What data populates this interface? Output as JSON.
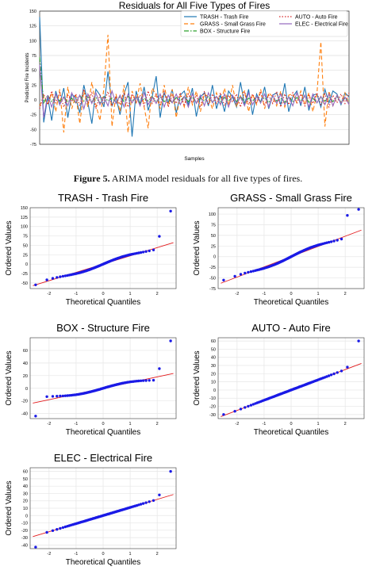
{
  "figure_caption": {
    "label": "Figure 5.",
    "text": "ARIMA model residuals for all five types of fires."
  },
  "chart_data": [
    {
      "type": "line",
      "title": "Residuals for All Five Types of Fires",
      "xlabel": "Samples",
      "ylabel": "Predicted Fire Incidents",
      "ylim": [
        -75,
        150
      ],
      "yticks": [
        -75,
        -50,
        -25,
        0,
        25,
        50,
        75,
        100,
        125,
        150
      ],
      "xticks": [],
      "grid": true,
      "legend_position": "top-right",
      "series": [
        {
          "name": "TRASH - Trash Fire",
          "color": "#1f77b4",
          "style": "solid",
          "values": [
            140,
            -38,
            5,
            -35,
            15,
            -8,
            20,
            -30,
            10,
            3,
            -22,
            25,
            -5,
            -40,
            18,
            8,
            -12,
            48,
            -10,
            5,
            -25,
            10,
            30,
            -62,
            15,
            -8,
            22,
            -18,
            5,
            40,
            -30,
            12,
            -5,
            18,
            -22,
            8,
            15,
            -8,
            20,
            -28,
            5,
            12,
            -10,
            25,
            -15,
            8,
            -20,
            15,
            5,
            -12,
            30,
            -8,
            18,
            -25,
            10,
            -5,
            22,
            -15,
            8,
            12,
            -8,
            28,
            -20,
            5,
            15,
            -10,
            22,
            -18,
            8,
            10,
            -12,
            18,
            -5,
            15,
            10,
            -8,
            12,
            5
          ]
        },
        {
          "name": "GRASS - Small Grass Fire",
          "color": "#ff7f0e",
          "style": "dashed",
          "values": [
            -10,
            5,
            -8,
            12,
            -20,
            18,
            -55,
            22,
            -15,
            8,
            -40,
            15,
            -12,
            30,
            -8,
            -35,
            20,
            110,
            -45,
            10,
            -20,
            25,
            -55,
            15,
            -5,
            28,
            -12,
            -48,
            20,
            8,
            -15,
            25,
            -10,
            18,
            -30,
            8,
            -12,
            22,
            -8,
            15,
            -20,
            10,
            5,
            -15,
            12,
            -8,
            20,
            -10,
            25,
            -12,
            8,
            15,
            -20,
            10,
            -8,
            18,
            -15,
            12,
            5,
            -10,
            15,
            -12,
            8,
            10,
            -5,
            15,
            -8,
            12,
            -20,
            10,
            98,
            -45,
            15,
            -10,
            8,
            -5,
            12,
            -8
          ]
        },
        {
          "name": "BOX - Structure Fire",
          "color": "#2ca02c",
          "style": "dashdot",
          "values": [
            72,
            -5,
            8,
            -3,
            6,
            -2,
            5,
            -4,
            3,
            -6,
            8,
            -2,
            5,
            -3,
            4,
            -5,
            6,
            -2,
            3,
            -4,
            5,
            -3,
            6,
            -2,
            4,
            -5,
            3,
            -2,
            6,
            -4,
            5,
            -3,
            2,
            -5,
            4,
            -2,
            6,
            -3,
            5,
            -4,
            3,
            -2,
            6,
            -4,
            5,
            -3,
            4,
            -2,
            5,
            -3,
            6,
            -4,
            3,
            -2,
            5,
            -3,
            4,
            -5,
            6,
            -2,
            3,
            -4,
            5,
            -3,
            4,
            -2,
            6,
            -4,
            3,
            -5,
            5,
            -2,
            4,
            -3,
            6,
            -4,
            3,
            -2
          ]
        },
        {
          "name": "AUTO - Auto Fire",
          "color": "#d62728",
          "style": "dotted",
          "values": [
            -15,
            10,
            -8,
            15,
            -5,
            12,
            -12,
            8,
            -3,
            10,
            -10,
            18,
            -6,
            12,
            -15,
            8,
            -5,
            14,
            -10,
            6,
            -8,
            12,
            -12,
            10,
            -4,
            8,
            -10,
            15,
            -6,
            10,
            -8,
            14,
            -12,
            8,
            -6,
            12,
            -10,
            10,
            -5,
            8,
            -12,
            15,
            -8,
            10,
            -6,
            12,
            -10,
            8,
            -4,
            10,
            -12,
            14,
            -8,
            10,
            -5,
            12,
            -10,
            8,
            -6,
            14,
            -12,
            10,
            -8,
            12,
            -5,
            10,
            -10,
            8,
            -6,
            12,
            -8,
            10,
            -12,
            8,
            -5,
            10,
            -6,
            12
          ]
        },
        {
          "name": "ELEC - Electrical Fire",
          "color": "#9467bd",
          "style": "solid",
          "values": [
            60,
            -30,
            8,
            -12,
            10,
            -8,
            5,
            -10,
            12,
            -5,
            8,
            -15,
            10,
            -6,
            12,
            -8,
            5,
            -10,
            15,
            -6,
            8,
            -12,
            10,
            -5,
            6,
            -10,
            12,
            -8,
            5,
            -6,
            10,
            -12,
            8,
            -5,
            10,
            -8,
            6,
            -12,
            10,
            -6,
            8,
            -10,
            12,
            -5,
            6,
            -8,
            10,
            -12,
            8,
            -6,
            5,
            -10,
            12,
            -8,
            6,
            -5,
            10,
            -12,
            8,
            -6,
            10,
            -8,
            5,
            -10,
            12,
            -6,
            8,
            -12,
            10,
            -5,
            6,
            -8,
            10,
            -10,
            8,
            -6,
            5,
            -8
          ]
        }
      ]
    },
    {
      "type": "scatter",
      "title": "TRASH - Trash Fire",
      "xlabel": "Theoretical Quantiles",
      "ylabel": "Ordered Values",
      "xlim": [
        -2.7,
        2.7
      ],
      "ylim": [
        -65,
        150
      ],
      "xticks": [
        -2,
        -1,
        0,
        1,
        2
      ],
      "yticks": [
        -50,
        -25,
        0,
        25,
        50,
        75,
        100,
        125,
        150
      ],
      "grid": true,
      "reference_line": {
        "slope": 22,
        "intercept": 0
      },
      "points": {
        "x_range": [
          -2.5,
          2.5
        ],
        "y_range": [
          -55,
          141
        ],
        "count": 80,
        "extremes": [
          {
            "x": -2.5,
            "y": -55
          },
          {
            "x": 2.2,
            "y": 74
          },
          {
            "x": 2.5,
            "y": 141
          }
        ],
        "shape": "s"
      }
    },
    {
      "type": "scatter",
      "title": "GRASS - Small Grass Fire",
      "xlabel": "Theoretical Quantiles",
      "ylabel": "Ordered Values",
      "xlim": [
        -2.7,
        2.7
      ],
      "ylim": [
        -75,
        115
      ],
      "xticks": [
        -2,
        -1,
        0,
        1,
        2
      ],
      "yticks": [
        -75,
        -50,
        -25,
        0,
        25,
        50,
        75,
        100
      ],
      "grid": true,
      "reference_line": {
        "slope": 24,
        "intercept": 0
      },
      "points": {
        "x_range": [
          -2.5,
          2.5
        ],
        "y_range": [
          -55,
          111
        ],
        "count": 80,
        "extremes": [
          {
            "x": -2.5,
            "y": -55
          },
          {
            "x": 2.2,
            "y": 97
          },
          {
            "x": 2.5,
            "y": 111
          }
        ],
        "shape": "s"
      }
    },
    {
      "type": "scatter",
      "title": "BOX - Structure Fire",
      "xlabel": "Theoretical Quantiles",
      "ylabel": "Ordered Values",
      "xlim": [
        -2.7,
        2.7
      ],
      "ylim": [
        -48,
        80
      ],
      "xticks": [
        -2,
        -1,
        0,
        1,
        2
      ],
      "yticks": [
        -40,
        -20,
        0,
        20,
        40,
        60
      ],
      "grid": true,
      "reference_line": {
        "slope": 9,
        "intercept": 0
      },
      "points": {
        "x_range": [
          -2.5,
          2.5
        ],
        "y_range": [
          -44,
          75
        ],
        "count": 80,
        "extremes": [
          {
            "x": -2.5,
            "y": -44
          },
          {
            "x": 2.2,
            "y": 31
          },
          {
            "x": 2.5,
            "y": 75
          }
        ],
        "shape": "flat"
      }
    },
    {
      "type": "scatter",
      "title": "AUTO - Auto Fire",
      "xlabel": "Theoretical Quantiles",
      "ylabel": "Ordered Values",
      "xlim": [
        -2.7,
        2.7
      ],
      "ylim": [
        -35,
        64
      ],
      "xticks": [
        -2,
        -1,
        0,
        1,
        2
      ],
      "yticks": [
        -30,
        -20,
        -10,
        0,
        10,
        20,
        30,
        40,
        50,
        60
      ],
      "grid": true,
      "reference_line": {
        "slope": 12.5,
        "intercept": 0
      },
      "points": {
        "x_range": [
          -2.5,
          2.5
        ],
        "y_range": [
          -30,
          60
        ],
        "count": 80,
        "extremes": [
          {
            "x": -2.5,
            "y": -30
          },
          {
            "x": 2.2,
            "y": 28
          },
          {
            "x": 2.5,
            "y": 60
          }
        ],
        "shape": "linear"
      }
    },
    {
      "type": "scatter",
      "title": "ELEC - Electrical Fire",
      "xlabel": "Theoretical Quantiles",
      "ylabel": "Ordered Values",
      "xlim": [
        -2.7,
        2.7
      ],
      "ylim": [
        -45,
        65
      ],
      "xticks": [
        -2,
        -1,
        0,
        1,
        2
      ],
      "yticks": [
        -40,
        -30,
        -20,
        -10,
        0,
        10,
        20,
        30,
        40,
        50,
        60
      ],
      "grid": true,
      "reference_line": {
        "slope": 11,
        "intercept": 0
      },
      "points": {
        "x_range": [
          -2.5,
          2.5
        ],
        "y_range": [
          -43,
          60
        ],
        "count": 80,
        "extremes": [
          {
            "x": -2.5,
            "y": -43
          },
          {
            "x": 2.2,
            "y": 28
          },
          {
            "x": 2.5,
            "y": 60
          }
        ],
        "shape": "linear"
      }
    }
  ]
}
